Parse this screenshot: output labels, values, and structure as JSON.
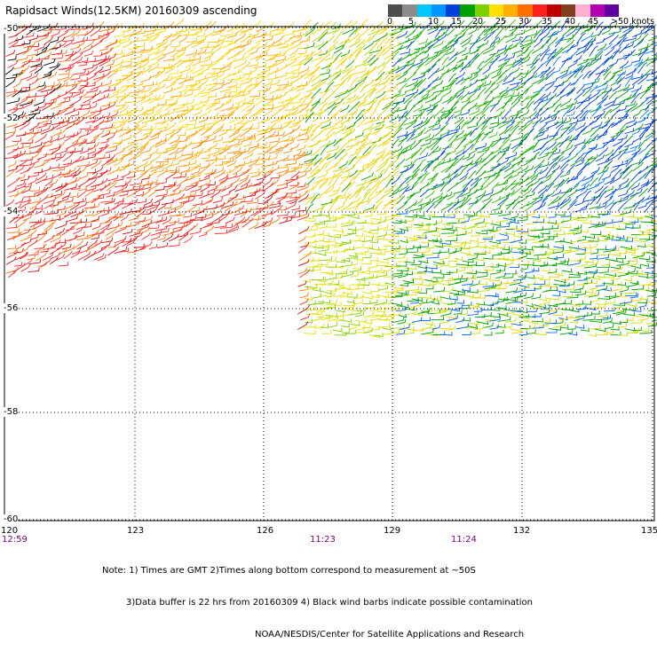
{
  "title": "Rapidsact Winds(12.5KM) 20160309 ascending",
  "colorbar": {
    "labels": [
      "0",
      "5",
      "10",
      "15",
      "20",
      "25",
      "30",
      "35",
      "40",
      "45",
      ">50 knots"
    ],
    "colors": [
      "#4d4d4d",
      "#8c8c8c",
      "#00c8ff",
      "#0096ff",
      "#0040d8",
      "#00a000",
      "#7ed000",
      "#ffe000",
      "#ffb000",
      "#ff7000",
      "#ff2020",
      "#c00000",
      "#804020",
      "#ffb0d0",
      "#b000b0",
      "#6000a0"
    ]
  },
  "lat_labels": [
    "-50",
    "-52",
    "-54",
    "-56",
    "-58",
    "-60"
  ],
  "lon_labels": [
    "120",
    "123",
    "126",
    "129",
    "132",
    "135"
  ],
  "time_labels": [
    "12:59",
    "11:23",
    "11:24"
  ],
  "notes": [
    "Note: 1) Times are GMT 2)Times along bottom correspond to measurement at ~50S",
    "3)Data buffer is 22 hrs from 20160309 4) Black wind barbs indicate possible contamination",
    "NOAA/NESDIS/Center for Satellite Applications and Research"
  ]
}
